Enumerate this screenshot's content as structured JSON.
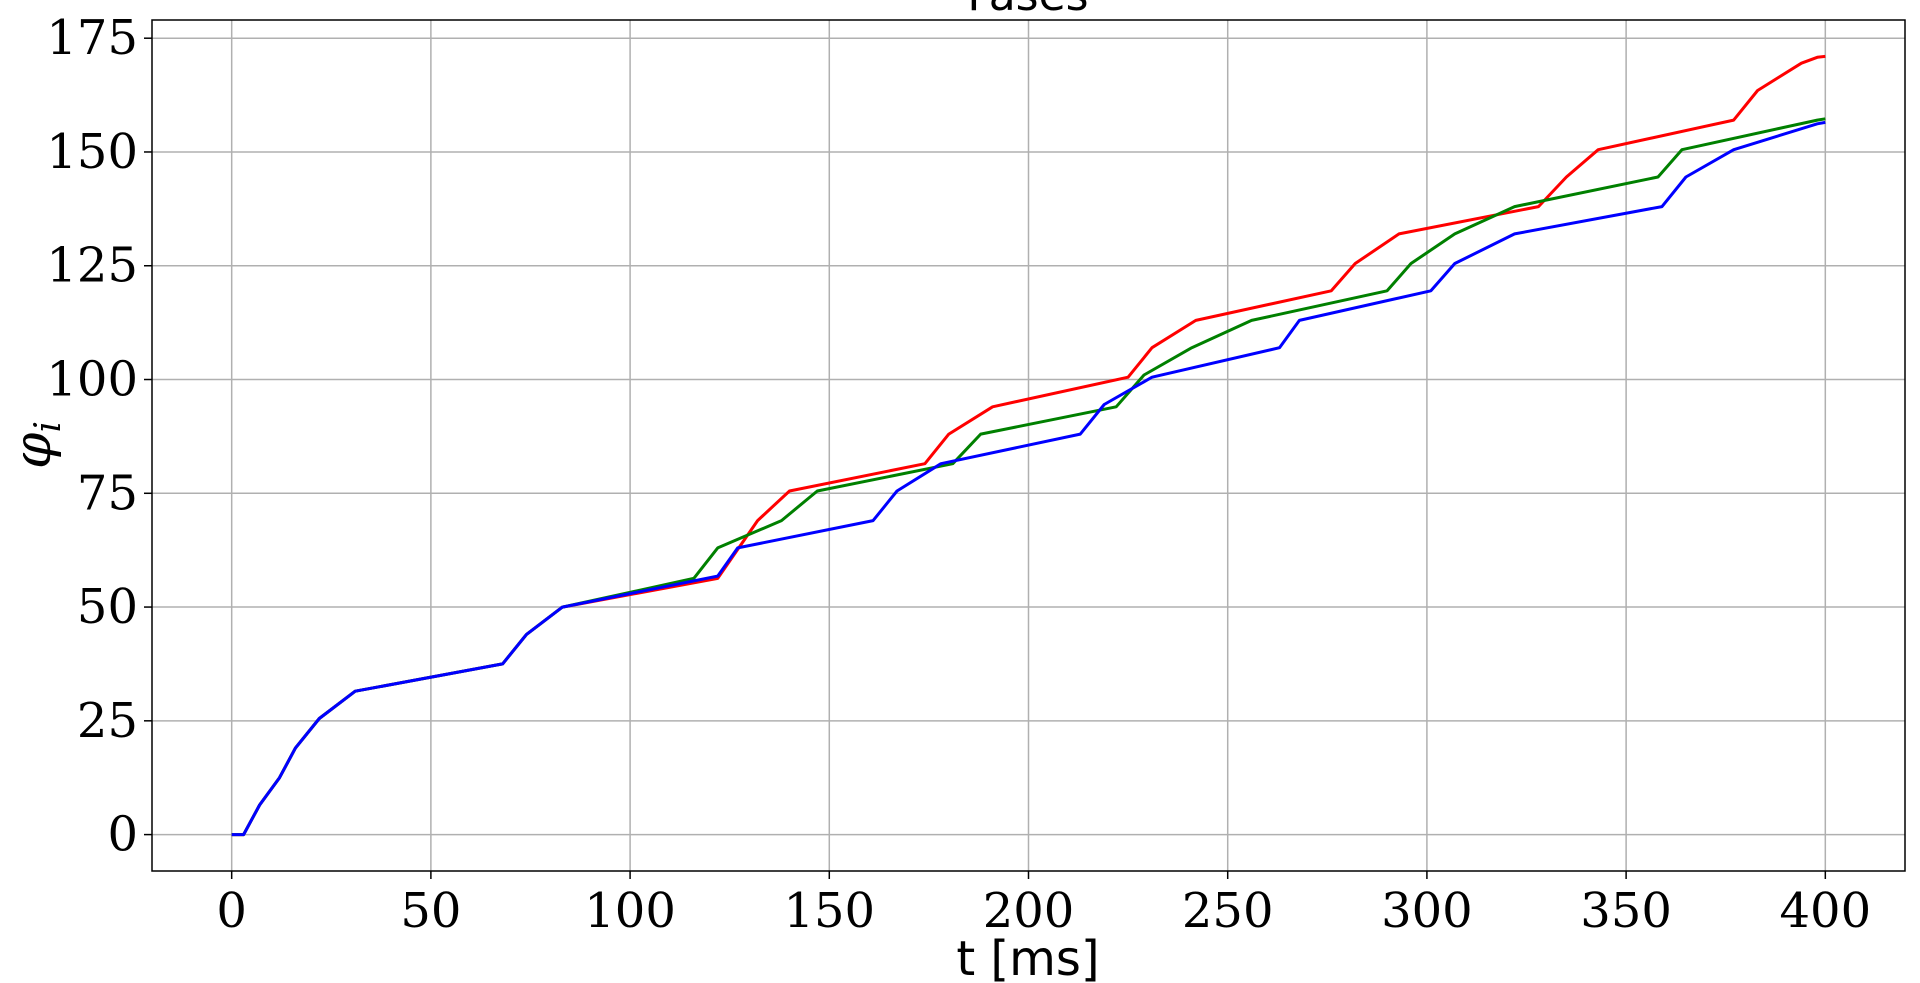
{
  "chart_data": {
    "type": "line",
    "title": "Fases",
    "xlabel": "t [ms]",
    "ylabel": "φ",
    "ylabel_subscript": "i",
    "xlim": [
      -20,
      420
    ],
    "ylim": [
      -8,
      179
    ],
    "xticks": [
      0,
      50,
      100,
      150,
      200,
      250,
      300,
      350,
      400
    ],
    "yticks": [
      0,
      25,
      50,
      75,
      100,
      125,
      150,
      175
    ],
    "grid": true,
    "series": [
      {
        "color": "#ff0000",
        "points": [
          [
            0,
            0
          ],
          [
            3,
            0
          ],
          [
            7,
            6.5
          ],
          [
            12,
            12.5
          ],
          [
            16,
            19
          ],
          [
            22,
            25.5
          ],
          [
            31,
            31.5
          ],
          [
            68,
            37.5
          ],
          [
            74,
            44
          ],
          [
            83,
            50
          ],
          [
            122,
            56.3
          ],
          [
            132,
            69
          ],
          [
            140,
            75.5
          ],
          [
            174,
            81.5
          ],
          [
            180,
            88
          ],
          [
            191,
            94
          ],
          [
            225,
            100.5
          ],
          [
            231,
            107
          ],
          [
            242,
            113
          ],
          [
            276,
            119.5
          ],
          [
            282,
            125.5
          ],
          [
            293,
            132
          ],
          [
            328,
            138
          ],
          [
            335,
            144.5
          ],
          [
            343,
            150.5
          ],
          [
            377,
            157
          ],
          [
            383,
            163.5
          ],
          [
            394,
            169.5
          ],
          [
            398,
            170.8
          ],
          [
            400,
            171
          ]
        ]
      },
      {
        "color": "#008000",
        "points": [
          [
            0,
            0
          ],
          [
            3,
            0
          ],
          [
            7,
            6.5
          ],
          [
            12,
            12.5
          ],
          [
            16,
            19
          ],
          [
            22,
            25.5
          ],
          [
            31,
            31.5
          ],
          [
            68,
            37.5
          ],
          [
            74,
            44
          ],
          [
            83,
            50
          ],
          [
            116,
            56.3
          ],
          [
            122,
            63
          ],
          [
            138,
            69
          ],
          [
            147,
            75.5
          ],
          [
            181,
            81.5
          ],
          [
            188,
            88
          ],
          [
            222,
            94
          ],
          [
            229,
            101
          ],
          [
            241,
            107
          ],
          [
            256,
            113
          ],
          [
            290,
            119.5
          ],
          [
            296,
            125.5
          ],
          [
            307,
            132
          ],
          [
            322,
            138
          ],
          [
            358,
            144.5
          ],
          [
            364,
            150.5
          ],
          [
            398,
            157
          ],
          [
            400,
            157.3
          ]
        ]
      },
      {
        "color": "#0000ff",
        "points": [
          [
            0,
            0
          ],
          [
            3,
            0
          ],
          [
            7,
            6.5
          ],
          [
            12,
            12.5
          ],
          [
            16,
            19
          ],
          [
            22,
            25.5
          ],
          [
            31,
            31.5
          ],
          [
            68,
            37.5
          ],
          [
            74,
            44
          ],
          [
            83,
            50
          ],
          [
            122,
            56.8
          ],
          [
            127,
            63
          ],
          [
            161,
            69
          ],
          [
            167,
            75.5
          ],
          [
            178,
            81.5
          ],
          [
            213,
            88
          ],
          [
            219,
            94.5
          ],
          [
            231,
            100.5
          ],
          [
            263,
            107
          ],
          [
            268,
            113
          ],
          [
            301,
            119.5
          ],
          [
            307,
            125.5
          ],
          [
            322,
            132
          ],
          [
            359,
            138
          ],
          [
            365,
            144.5
          ],
          [
            377,
            150.5
          ],
          [
            398,
            156.2
          ],
          [
            400,
            156.5
          ]
        ]
      }
    ]
  }
}
